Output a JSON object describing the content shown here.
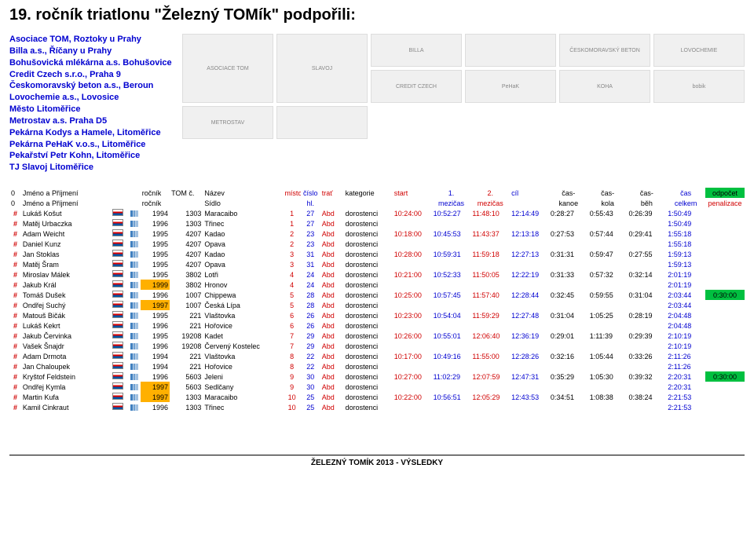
{
  "title": "19. ročník triatlonu \"Železný TOMík\" podpořili:",
  "sponsors": [
    "Asociace TOM, Roztoky u Prahy",
    "Billa a.s., Říčany u Prahy",
    "Bohušovická mlékárna a.s. Bohušovice",
    "Credit Czech s.r.o., Praha 9",
    "Českomoravský beton a.s., Beroun",
    "Lovochemie a.s., Lovosice",
    "Město Litoměřice",
    "Metrostav a.s. Praha D5",
    "Pekárna Kodys a Hamele, Litoměřice",
    "Pekárna PeHaK v.o.s., Litoměřice",
    "Pekařství Petr Kohn, Litoměřice",
    "TJ Slavoj Litoměřice"
  ],
  "logos": [
    "ASOCIACE TOM",
    "SLAVOJ",
    "BILLA",
    "",
    "ČESKOMORAVSKÝ BETON",
    "LOVOCHEMIE",
    "CREDIT CZECH",
    "PeHaK",
    "KOHA",
    "bobik",
    "METROSTAV",
    ""
  ],
  "headers": {
    "r1": {
      "c0": "0",
      "c1": "Jméno a Příjmení",
      "c2": "ročník",
      "c3": "TOM č.",
      "c4": "Název",
      "c5": "místo",
      "c6": "číslo",
      "c7": "trať",
      "c8": "kategorie",
      "c9": "start",
      "c10": "1.",
      "c11": "2.",
      "c12": "cíl",
      "c13": "čas-",
      "c14": "čas-",
      "c15": "čas-",
      "c16": "čas",
      "c17": "odpočet"
    },
    "r2": {
      "c0": "0",
      "c1": "Jméno a Příjmení",
      "c2": "ročník",
      "c4": "Sídlo",
      "c6": "hl.",
      "c10": "mezičas",
      "c11": "mezičas",
      "c13": "kanoe",
      "c14": "kola",
      "c15": "běh",
      "c16": "celkem",
      "c17": "penalizace"
    }
  },
  "rows": [
    {
      "name": "Lukáš Košut",
      "year": "1994",
      "yhl": false,
      "num": "1303",
      "club": "Maracaibo",
      "place": "1",
      "bib": "27",
      "trat": "Abd",
      "cat": "dorostenci",
      "start": "10:24:00",
      "m1": "10:52:27",
      "m2": "11:48:10",
      "cil": "12:14:49",
      "kanoe": "0:28:27",
      "kola": "0:55:43",
      "beh": "0:26:39",
      "cel": "1:50:49",
      "pen": ""
    },
    {
      "name": "Matěj Urbaczka",
      "year": "1996",
      "yhl": false,
      "num": "1303",
      "club": "Třinec",
      "place": "1",
      "bib": "27",
      "trat": "Abd",
      "cat": "dorostenci",
      "start": "",
      "m1": "",
      "m2": "",
      "cil": "",
      "kanoe": "",
      "kola": "",
      "beh": "",
      "cel": "1:50:49",
      "pen": ""
    },
    {
      "name": "Adam Weicht",
      "year": "1995",
      "yhl": false,
      "num": "4207",
      "club": "Kadao",
      "place": "2",
      "bib": "23",
      "trat": "Abd",
      "cat": "dorostenci",
      "start": "10:18:00",
      "m1": "10:45:53",
      "m2": "11:43:37",
      "cil": "12:13:18",
      "kanoe": "0:27:53",
      "kola": "0:57:44",
      "beh": "0:29:41",
      "cel": "1:55:18",
      "pen": ""
    },
    {
      "name": "Daniel Kunz",
      "year": "1995",
      "yhl": false,
      "num": "4207",
      "club": "Opava",
      "place": "2",
      "bib": "23",
      "trat": "Abd",
      "cat": "dorostenci",
      "start": "",
      "m1": "",
      "m2": "",
      "cil": "",
      "kanoe": "",
      "kola": "",
      "beh": "",
      "cel": "1:55:18",
      "pen": ""
    },
    {
      "name": "Jan Stoklas",
      "year": "1995",
      "yhl": false,
      "num": "4207",
      "club": "Kadao",
      "place": "3",
      "bib": "31",
      "trat": "Abd",
      "cat": "dorostenci",
      "start": "10:28:00",
      "m1": "10:59:31",
      "m2": "11:59:18",
      "cil": "12:27:13",
      "kanoe": "0:31:31",
      "kola": "0:59:47",
      "beh": "0:27:55",
      "cel": "1:59:13",
      "pen": ""
    },
    {
      "name": "Matěj Šram",
      "year": "1995",
      "yhl": false,
      "num": "4207",
      "club": "Opava",
      "place": "3",
      "bib": "31",
      "trat": "Abd",
      "cat": "dorostenci",
      "start": "",
      "m1": "",
      "m2": "",
      "cil": "",
      "kanoe": "",
      "kola": "",
      "beh": "",
      "cel": "1:59:13",
      "pen": ""
    },
    {
      "name": "Miroslav Málek",
      "year": "1995",
      "yhl": false,
      "num": "3802",
      "club": "Lotři",
      "place": "4",
      "bib": "24",
      "trat": "Abd",
      "cat": "dorostenci",
      "start": "10:21:00",
      "m1": "10:52:33",
      "m2": "11:50:05",
      "cil": "12:22:19",
      "kanoe": "0:31:33",
      "kola": "0:57:32",
      "beh": "0:32:14",
      "cel": "2:01:19",
      "pen": ""
    },
    {
      "name": "Jakub Král",
      "year": "1999",
      "yhl": true,
      "num": "3802",
      "club": "Hronov",
      "place": "4",
      "bib": "24",
      "trat": "Abd",
      "cat": "dorostenci",
      "start": "",
      "m1": "",
      "m2": "",
      "cil": "",
      "kanoe": "",
      "kola": "",
      "beh": "",
      "cel": "2:01:19",
      "pen": ""
    },
    {
      "name": "Tomáš Dušek",
      "year": "1996",
      "yhl": false,
      "num": "1007",
      "club": "Chippewa",
      "place": "5",
      "bib": "28",
      "trat": "Abd",
      "cat": "dorostenci",
      "start": "10:25:00",
      "m1": "10:57:45",
      "m2": "11:57:40",
      "cil": "12:28:44",
      "kanoe": "0:32:45",
      "kola": "0:59:55",
      "beh": "0:31:04",
      "cel": "2:03:44",
      "pen": "0:30:00"
    },
    {
      "name": "Ondřej Suchý",
      "year": "1997",
      "yhl": true,
      "num": "1007",
      "club": "Česká Lípa",
      "place": "5",
      "bib": "28",
      "trat": "Abd",
      "cat": "dorostenci",
      "start": "",
      "m1": "",
      "m2": "",
      "cil": "",
      "kanoe": "",
      "kola": "",
      "beh": "",
      "cel": "2:03:44",
      "pen": ""
    },
    {
      "name": "Matouš Bičák",
      "year": "1995",
      "yhl": false,
      "num": "221",
      "club": "Vlaštovka",
      "place": "6",
      "bib": "26",
      "trat": "Abd",
      "cat": "dorostenci",
      "start": "10:23:00",
      "m1": "10:54:04",
      "m2": "11:59:29",
      "cil": "12:27:48",
      "kanoe": "0:31:04",
      "kola": "1:05:25",
      "beh": "0:28:19",
      "cel": "2:04:48",
      "pen": ""
    },
    {
      "name": "Lukáš Kekrt",
      "year": "1996",
      "yhl": false,
      "num": "221",
      "club": "Hořovice",
      "place": "6",
      "bib": "26",
      "trat": "Abd",
      "cat": "dorostenci",
      "start": "",
      "m1": "",
      "m2": "",
      "cil": "",
      "kanoe": "",
      "kola": "",
      "beh": "",
      "cel": "2:04:48",
      "pen": ""
    },
    {
      "name": "Jakub Červinka",
      "year": "1995",
      "yhl": false,
      "num": "19208",
      "club": "Kadet",
      "place": "7",
      "bib": "29",
      "trat": "Abd",
      "cat": "dorostenci",
      "start": "10:26:00",
      "m1": "10:55:01",
      "m2": "12:06:40",
      "cil": "12:36:19",
      "kanoe": "0:29:01",
      "kola": "1:11:39",
      "beh": "0:29:39",
      "cel": "2:10:19",
      "pen": ""
    },
    {
      "name": "Vašek Šnajdr",
      "year": "1996",
      "yhl": false,
      "num": "19208",
      "club": "Červený Kostelec",
      "place": "7",
      "bib": "29",
      "trat": "Abd",
      "cat": "dorostenci",
      "start": "",
      "m1": "",
      "m2": "",
      "cil": "",
      "kanoe": "",
      "kola": "",
      "beh": "",
      "cel": "2:10:19",
      "pen": ""
    },
    {
      "name": "Adam Drmota",
      "year": "1994",
      "yhl": false,
      "num": "221",
      "club": "Vlaštovka",
      "place": "8",
      "bib": "22",
      "trat": "Abd",
      "cat": "dorostenci",
      "start": "10:17:00",
      "m1": "10:49:16",
      "m2": "11:55:00",
      "cil": "12:28:26",
      "kanoe": "0:32:16",
      "kola": "1:05:44",
      "beh": "0:33:26",
      "cel": "2:11:26",
      "pen": ""
    },
    {
      "name": "Jan Chaloupek",
      "year": "1994",
      "yhl": false,
      "num": "221",
      "club": "Hořovice",
      "place": "8",
      "bib": "22",
      "trat": "Abd",
      "cat": "dorostenci",
      "start": "",
      "m1": "",
      "m2": "",
      "cil": "",
      "kanoe": "",
      "kola": "",
      "beh": "",
      "cel": "2:11:26",
      "pen": ""
    },
    {
      "name": "Kryštof Feldstein",
      "year": "1996",
      "yhl": false,
      "num": "5603",
      "club": "Jeleni",
      "place": "9",
      "bib": "30",
      "trat": "Abd",
      "cat": "dorostenci",
      "start": "10:27:00",
      "m1": "11:02:29",
      "m2": "12:07:59",
      "cil": "12:47:31",
      "kanoe": "0:35:29",
      "kola": "1:05:30",
      "beh": "0:39:32",
      "cel": "2:20:31",
      "pen": "0:30:00"
    },
    {
      "name": "Ondřej Kymla",
      "year": "1997",
      "yhl": true,
      "num": "5603",
      "club": "Sedlčany",
      "place": "9",
      "bib": "30",
      "trat": "Abd",
      "cat": "dorostenci",
      "start": "",
      "m1": "",
      "m2": "",
      "cil": "",
      "kanoe": "",
      "kola": "",
      "beh": "",
      "cel": "2:20:31",
      "pen": ""
    },
    {
      "name": "Martin Kufa",
      "year": "1997",
      "yhl": true,
      "num": "1303",
      "club": "Maracaibo",
      "place": "10",
      "bib": "25",
      "trat": "Abd",
      "cat": "dorostenci",
      "start": "10:22:00",
      "m1": "10:56:51",
      "m2": "12:05:29",
      "cil": "12:43:53",
      "kanoe": "0:34:51",
      "kola": "1:08:38",
      "beh": "0:38:24",
      "cel": "2:21:53",
      "pen": ""
    },
    {
      "name": "Kamil Cinkraut",
      "year": "1996",
      "yhl": false,
      "num": "1303",
      "club": "Třinec",
      "place": "10",
      "bib": "25",
      "trat": "Abd",
      "cat": "dorostenci",
      "start": "",
      "m1": "",
      "m2": "",
      "cil": "",
      "kanoe": "",
      "kola": "",
      "beh": "",
      "cel": "2:21:53",
      "pen": ""
    }
  ],
  "footer": "ŽELEZNÝ TOMÍK 2013 - VÝSLEDKY"
}
